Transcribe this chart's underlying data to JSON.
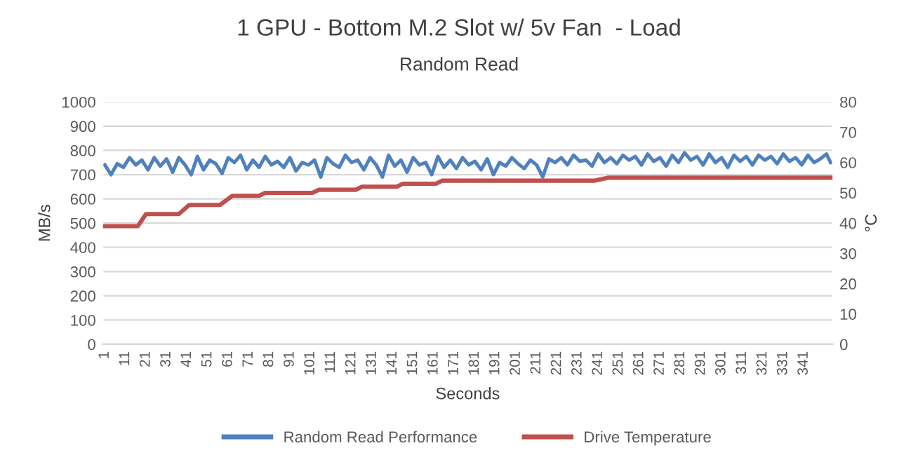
{
  "chart_data": {
    "type": "line",
    "title": "1 GPU - Bottom M.2 Slot w/ 5v Fan  - Load",
    "subtitle": "Random Read",
    "xlabel": "Seconds",
    "ylabel": "MB/s",
    "y2label": "°C",
    "xlim": [
      0,
      355
    ],
    "xticks": [
      1,
      11,
      21,
      31,
      41,
      51,
      61,
      71,
      81,
      91,
      101,
      111,
      121,
      131,
      141,
      151,
      161,
      171,
      181,
      191,
      201,
      211,
      221,
      231,
      241,
      251,
      261,
      271,
      281,
      291,
      301,
      311,
      321,
      331,
      341
    ],
    "ylim": [
      0,
      1000
    ],
    "yticks": [
      0,
      100,
      200,
      300,
      400,
      500,
      600,
      700,
      800,
      900,
      1000
    ],
    "y2lim": [
      0,
      80
    ],
    "y2ticks": [
      0,
      10,
      20,
      30,
      40,
      50,
      60,
      70,
      80
    ],
    "grid": "y",
    "legend": "bottom",
    "marker": "none",
    "line_style": "solid",
    "series": [
      {
        "name": "Random Read Performance",
        "color": "#4f81bd",
        "x": [
          1,
          4,
          7,
          10,
          13,
          16,
          19,
          22,
          25,
          28,
          31,
          34,
          37,
          40,
          43,
          46,
          49,
          52,
          55,
          58,
          61,
          64,
          67,
          70,
          73,
          76,
          79,
          82,
          85,
          88,
          91,
          94,
          97,
          100,
          103,
          106,
          109,
          112,
          115,
          118,
          121,
          124,
          127,
          130,
          133,
          136,
          139,
          142,
          145,
          148,
          151,
          154,
          157,
          160,
          163,
          166,
          169,
          172,
          175,
          178,
          181,
          184,
          187,
          190,
          193,
          196,
          199,
          202,
          205,
          208,
          211,
          214,
          217,
          220,
          223,
          226,
          229,
          232,
          235,
          238,
          241,
          244,
          247,
          250,
          253,
          256,
          259,
          262,
          265,
          268,
          271,
          274,
          277,
          280,
          283,
          286,
          289,
          292,
          295,
          298,
          301,
          304,
          307,
          310,
          313,
          316,
          319,
          322,
          325,
          328,
          331,
          334,
          337,
          340,
          343,
          346,
          349,
          352,
          354
        ],
        "values": [
          740,
          700,
          745,
          730,
          770,
          740,
          760,
          720,
          770,
          735,
          765,
          710,
          770,
          740,
          700,
          775,
          720,
          760,
          745,
          705,
          770,
          750,
          780,
          720,
          760,
          730,
          775,
          740,
          755,
          730,
          770,
          715,
          750,
          740,
          760,
          690,
          770,
          745,
          730,
          780,
          750,
          760,
          720,
          770,
          740,
          690,
          780,
          735,
          760,
          710,
          770,
          740,
          750,
          700,
          775,
          730,
          760,
          725,
          770,
          740,
          755,
          720,
          765,
          700,
          750,
          735,
          770,
          745,
          725,
          760,
          740,
          690,
          765,
          750,
          770,
          740,
          780,
          755,
          760,
          735,
          785,
          750,
          770,
          745,
          780,
          760,
          775,
          740,
          785,
          755,
          770,
          735,
          780,
          750,
          790,
          760,
          775,
          740,
          785,
          750,
          770,
          730,
          780,
          755,
          775,
          740,
          780,
          760,
          775,
          745,
          785,
          755,
          770,
          740,
          780,
          750,
          765,
          785,
          750
        ]
      },
      {
        "name": "Drive Temperature",
        "color": "#c0504d",
        "axis": "y2",
        "x": [
          1,
          17,
          21,
          37,
          42,
          57,
          63,
          76,
          79,
          102,
          105,
          123,
          126,
          143,
          146,
          162,
          165,
          239,
          246,
          354
        ],
        "values": [
          39,
          39,
          43,
          43,
          46,
          46,
          49,
          49,
          50,
          50,
          51,
          51,
          52,
          52,
          53,
          53,
          54,
          54,
          55,
          55
        ]
      }
    ]
  }
}
